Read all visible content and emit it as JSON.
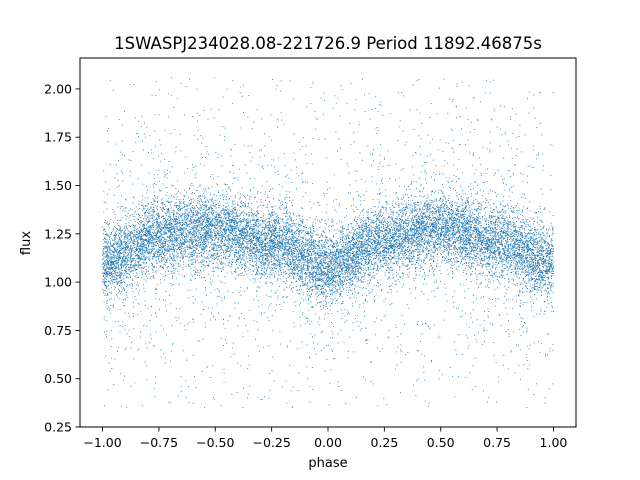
{
  "chart_data": {
    "type": "scatter",
    "title": "1SWASPJ234028.08-221726.9 Period 11892.46875s",
    "xlabel": "phase",
    "ylabel": "flux",
    "xlim": [
      -1.1,
      1.1
    ],
    "ylim": [
      0.25,
      2.16
    ],
    "x_ticks": [
      -1.0,
      -0.75,
      -0.5,
      -0.25,
      0.0,
      0.25,
      0.5,
      0.75,
      1.0
    ],
    "x_tick_labels": [
      "−1.00",
      "−0.75",
      "−0.50",
      "−0.25",
      "0.00",
      "0.25",
      "0.50",
      "0.75",
      "1.00"
    ],
    "y_ticks": [
      0.25,
      0.5,
      0.75,
      1.0,
      1.25,
      1.5,
      1.75,
      2.0
    ],
    "y_tick_labels": [
      "0.25",
      "0.50",
      "0.75",
      "1.00",
      "1.25",
      "1.50",
      "1.75",
      "2.00"
    ],
    "grid": false,
    "marker_color": "#1f77b4",
    "series": [
      {
        "x_range": [
          -1.0,
          1.0
        ],
        "trend": {
          "phase": [
            -1.0,
            -0.75,
            -0.5,
            -0.25,
            0.0,
            0.25,
            0.5,
            0.75,
            1.0
          ],
          "flux": [
            1.1,
            1.24,
            1.27,
            1.2,
            1.08,
            1.22,
            1.28,
            1.21,
            1.1
          ]
        },
        "flux_spread": 0.12,
        "outlier_range": [
          0.35,
          2.06
        ]
      }
    ]
  }
}
